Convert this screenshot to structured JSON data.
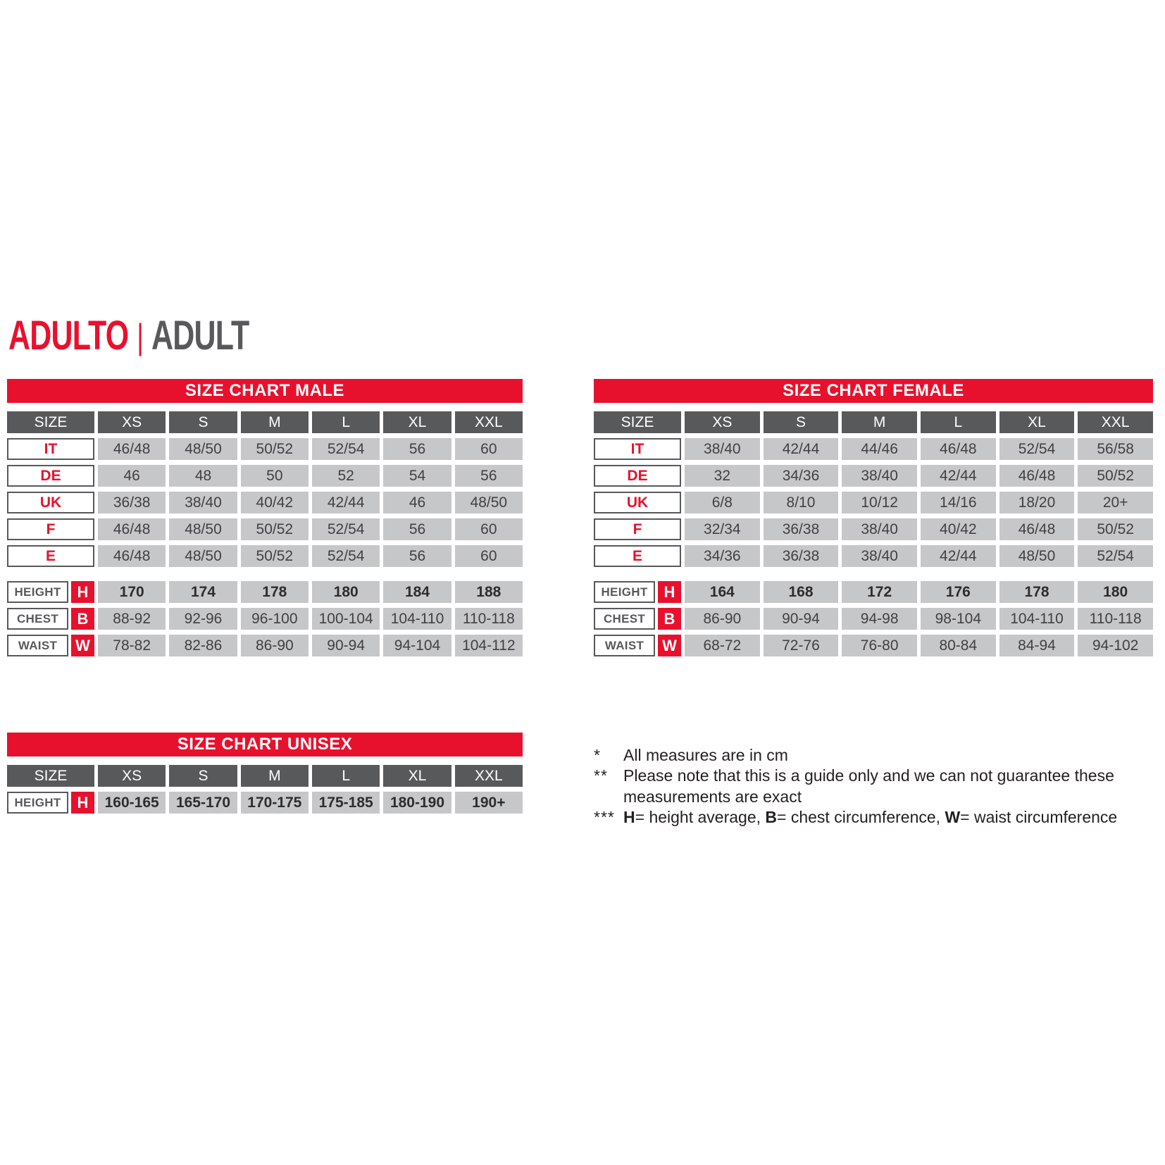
{
  "page": {
    "title_primary": "ADULTO",
    "title_separator": "|",
    "title_secondary": "ADULT"
  },
  "colors": {
    "accent_red": "#e8112d",
    "header_gray": "#58595b",
    "cell_gray": "#c6c7c9",
    "text_dark": "#414042"
  },
  "tables": {
    "male": {
      "title": "SIZE CHART MALE",
      "size_header": "SIZE",
      "columns": [
        "XS",
        "S",
        "M",
        "L",
        "XL",
        "XXL"
      ],
      "region_rows": [
        {
          "label": "IT",
          "values": [
            "46/48",
            "48/50",
            "50/52",
            "52/54",
            "56",
            "60"
          ]
        },
        {
          "label": "DE",
          "values": [
            "46",
            "48",
            "50",
            "52",
            "54",
            "56"
          ]
        },
        {
          "label": "UK",
          "values": [
            "36/38",
            "38/40",
            "40/42",
            "42/44",
            "46",
            "48/50"
          ]
        },
        {
          "label": "F",
          "values": [
            "46/48",
            "48/50",
            "50/52",
            "52/54",
            "56",
            "60"
          ]
        },
        {
          "label": "E",
          "values": [
            "46/48",
            "48/50",
            "50/52",
            "52/54",
            "56",
            "60"
          ]
        }
      ],
      "measure_rows": [
        {
          "label": "HEIGHT",
          "key": "H",
          "bold": true,
          "values": [
            "170",
            "174",
            "178",
            "180",
            "184",
            "188"
          ]
        },
        {
          "label": "CHEST",
          "key": "B",
          "bold": false,
          "values": [
            "88-92",
            "92-96",
            "96-100",
            "100-104",
            "104-110",
            "110-118"
          ]
        },
        {
          "label": "WAIST",
          "key": "W",
          "bold": false,
          "values": [
            "78-82",
            "82-86",
            "86-90",
            "90-94",
            "94-104",
            "104-112"
          ]
        }
      ]
    },
    "female": {
      "title": "SIZE CHART FEMALE",
      "size_header": "SIZE",
      "columns": [
        "XS",
        "S",
        "M",
        "L",
        "XL",
        "XXL"
      ],
      "region_rows": [
        {
          "label": "IT",
          "values": [
            "38/40",
            "42/44",
            "44/46",
            "46/48",
            "52/54",
            "56/58"
          ]
        },
        {
          "label": "DE",
          "values": [
            "32",
            "34/36",
            "38/40",
            "42/44",
            "46/48",
            "50/52"
          ]
        },
        {
          "label": "UK",
          "values": [
            "6/8",
            "8/10",
            "10/12",
            "14/16",
            "18/20",
            "20+"
          ]
        },
        {
          "label": "F",
          "values": [
            "32/34",
            "36/38",
            "38/40",
            "40/42",
            "46/48",
            "50/52"
          ]
        },
        {
          "label": "E",
          "values": [
            "34/36",
            "36/38",
            "38/40",
            "42/44",
            "48/50",
            "52/54"
          ]
        }
      ],
      "measure_rows": [
        {
          "label": "HEIGHT",
          "key": "H",
          "bold": true,
          "values": [
            "164",
            "168",
            "172",
            "176",
            "178",
            "180"
          ]
        },
        {
          "label": "CHEST",
          "key": "B",
          "bold": false,
          "values": [
            "86-90",
            "90-94",
            "94-98",
            "98-104",
            "104-110",
            "110-118"
          ]
        },
        {
          "label": "WAIST",
          "key": "W",
          "bold": false,
          "values": [
            "68-72",
            "72-76",
            "76-80",
            "80-84",
            "84-94",
            "94-102"
          ]
        }
      ]
    },
    "unisex": {
      "title": "SIZE CHART UNISEX",
      "size_header": "SIZE",
      "columns": [
        "XS",
        "S",
        "M",
        "L",
        "XL",
        "XXL"
      ],
      "region_rows": [],
      "measure_rows": [
        {
          "label": "HEIGHT",
          "key": "H",
          "bold": true,
          "values": [
            "160-165",
            "165-170",
            "170-175",
            "175-185",
            "180-190",
            "190+"
          ]
        }
      ]
    }
  },
  "footnotes": {
    "items": [
      {
        "marker": "*",
        "segments": [
          {
            "text": "All measures are in cm",
            "bold": false
          }
        ]
      },
      {
        "marker": "**",
        "segments": [
          {
            "text": "Please note that this is a guide only and we can not guarantee these measurements are exact",
            "bold": false
          }
        ]
      },
      {
        "marker": "***",
        "segments": [
          {
            "text": "H",
            "bold": true
          },
          {
            "text": "= height average, ",
            "bold": false
          },
          {
            "text": "B",
            "bold": true
          },
          {
            "text": "= chest circumference, ",
            "bold": false
          },
          {
            "text": "W",
            "bold": true
          },
          {
            "text": "= waist circumference",
            "bold": false
          }
        ]
      }
    ]
  }
}
